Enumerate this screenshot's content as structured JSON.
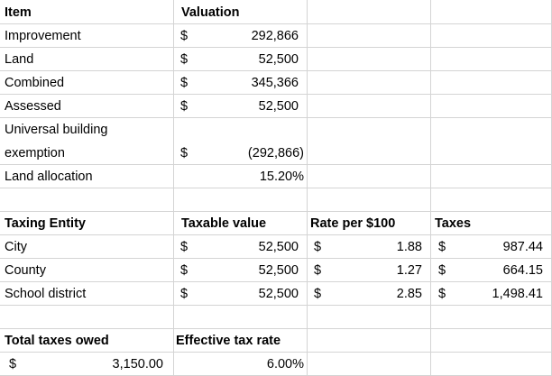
{
  "valuation_table": {
    "header": {
      "item": "Item",
      "valuation": "Valuation"
    },
    "rows": [
      {
        "item": "Improvement",
        "currency": "$",
        "value": "292,866"
      },
      {
        "item": "Land",
        "currency": "$",
        "value": "52,500"
      },
      {
        "item": "Combined",
        "currency": "$",
        "value": "345,366"
      },
      {
        "item": "Assessed",
        "currency": "$",
        "value": "52,500"
      },
      {
        "item_line1": "Universal building",
        "item_line2": "exemption",
        "currency": "$",
        "value": "(292,866)"
      },
      {
        "item": "Land allocation",
        "value": "15.20%"
      }
    ]
  },
  "taxes_table": {
    "header": {
      "entity": "Taxing Entity",
      "taxable": "Taxable value",
      "rate": "Rate per $100",
      "taxes": "Taxes"
    },
    "rows": [
      {
        "entity": "City",
        "taxable_currency": "$",
        "taxable": "52,500",
        "rate_currency": "$",
        "rate": "1.88",
        "taxes_currency": "$",
        "taxes": "987.44"
      },
      {
        "entity": "County",
        "taxable_currency": "$",
        "taxable": "52,500",
        "rate_currency": "$",
        "rate": "1.27",
        "taxes_currency": "$",
        "taxes": "664.15"
      },
      {
        "entity": "School district",
        "taxable_currency": "$",
        "taxable": "52,500",
        "rate_currency": "$",
        "rate": "2.85",
        "taxes_currency": "$",
        "taxes": "1,498.41"
      }
    ]
  },
  "summary": {
    "total_label": "Total taxes owed",
    "total_currency": "$",
    "total_value": "3,150.00",
    "effective_label": "Effective tax rate",
    "effective_value": "6.00%"
  }
}
